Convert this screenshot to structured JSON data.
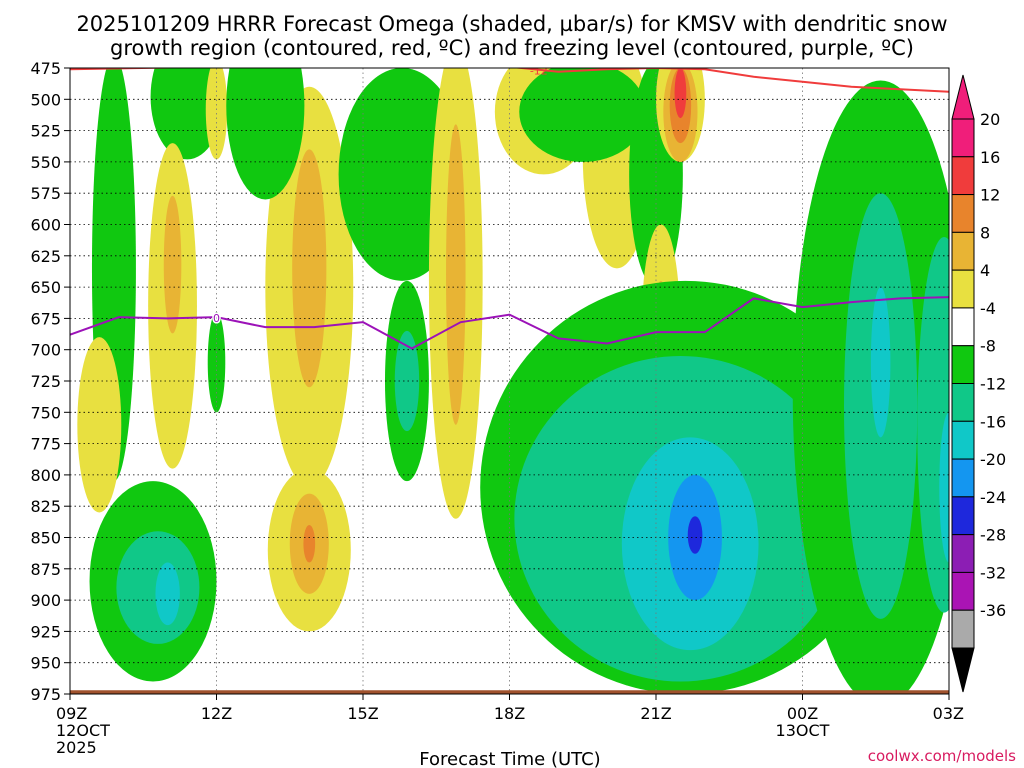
{
  "chart_data": {
    "type": "heatmap",
    "title_line1": "2025101209 HRRR Forecast Omega (shaded, µbar/s) for KMSV with dendritic snow",
    "title_line2": "growth region (contoured, red, ºC) and freezing level (contoured, purple, ºC)",
    "xlabel": "Forecast Time (UTC)",
    "credit": "coolwx.com/models",
    "x_hours": [
      0,
      3,
      6,
      9,
      12,
      15,
      18
    ],
    "x_ticks": [
      "09Z",
      "12Z",
      "15Z",
      "18Z",
      "21Z",
      "00Z",
      "03Z"
    ],
    "x_sub_ticks": [
      {
        "hour": 0,
        "line2": "12OCT",
        "line3": "2025"
      },
      {
        "hour": 15,
        "line2": "13OCT",
        "line3": ""
      }
    ],
    "xlim": [
      0,
      18
    ],
    "y_ticks": [
      475,
      500,
      525,
      550,
      575,
      600,
      625,
      650,
      675,
      700,
      725,
      750,
      775,
      800,
      825,
      850,
      875,
      900,
      925,
      950,
      975
    ],
    "ylim": [
      475,
      975
    ],
    "colorbar": {
      "labels": [
        "20",
        "16",
        "12",
        "8",
        "4",
        "-4",
        "-8",
        "-12",
        "-16",
        "-20",
        "-24",
        "-28",
        "-32",
        "-36"
      ],
      "colors": [
        "#f01e7a",
        "#f03c3c",
        "#e8842c",
        "#e8b434",
        "#e8e040",
        "#ffffff",
        "#10c810",
        "#10c888",
        "#10c8c8",
        "#1496f0",
        "#1e28dc",
        "#8c1eb4",
        "#aa14b4",
        "#aaaaaa"
      ],
      "top_arrow_color": "#f01e7a",
      "bottom_arrow_color": "#000000"
    },
    "freezing_level": {
      "color": "#9c12b8",
      "label": "0",
      "hours": [
        0,
        1,
        2,
        3,
        4,
        5,
        6,
        7,
        8,
        9,
        10,
        11,
        12,
        13,
        14,
        15,
        16,
        17,
        18
      ],
      "pressure": [
        688,
        674,
        675,
        674,
        682,
        682,
        678,
        699,
        678,
        672,
        691,
        695,
        686,
        686,
        659,
        666,
        662,
        659,
        658
      ]
    },
    "dgz_top": {
      "color": "#f03c3c",
      "label": "-12",
      "hours": [
        0,
        3,
        6,
        9,
        10,
        11,
        12,
        13,
        14,
        15,
        16,
        17,
        18
      ],
      "pressure": [
        476,
        474,
        474,
        474,
        478,
        476,
        475,
        476,
        482,
        486,
        490,
        492,
        494
      ]
    },
    "ground": {
      "color": "#a0522d",
      "pressure": 972
    },
    "omega_regions": [
      {
        "band": "-8",
        "hour": 0.9,
        "p": 635,
        "dh": 0.45,
        "dp": 170
      },
      {
        "band": "-8",
        "hour": 2.4,
        "p": 498,
        "dh": 0.75,
        "dp": 50
      },
      {
        "band": "4",
        "hour": 3.0,
        "p": 508,
        "dh": 0.22,
        "dp": 40
      },
      {
        "band": "4",
        "hour": 0.6,
        "p": 760,
        "dh": 0.45,
        "dp": 70
      },
      {
        "band": "4",
        "hour": 2.1,
        "p": 665,
        "dh": 0.5,
        "dp": 130
      },
      {
        "band": "8",
        "hour": 2.1,
        "p": 632,
        "dh": 0.18,
        "dp": 55
      },
      {
        "band": "-8",
        "hour": 3.0,
        "p": 710,
        "dh": 0.18,
        "dp": 40
      },
      {
        "band": "4",
        "hour": 4.9,
        "p": 650,
        "dh": 0.9,
        "dp": 160
      },
      {
        "band": "8",
        "hour": 4.9,
        "p": 635,
        "dh": 0.35,
        "dp": 95
      },
      {
        "band": "-8",
        "hour": 4.0,
        "p": 505,
        "dh": 0.8,
        "dp": 75
      },
      {
        "band": "-8",
        "hour": 1.7,
        "p": 885,
        "dh": 1.3,
        "dp": 80
      },
      {
        "band": "-12",
        "hour": 1.8,
        "p": 890,
        "dh": 0.85,
        "dp": 45
      },
      {
        "band": "-16",
        "hour": 2.0,
        "p": 895,
        "dh": 0.25,
        "dp": 25
      },
      {
        "band": "4",
        "hour": 4.9,
        "p": 860,
        "dh": 0.85,
        "dp": 65
      },
      {
        "band": "8",
        "hour": 4.9,
        "p": 855,
        "dh": 0.4,
        "dp": 40
      },
      {
        "band": "12",
        "hour": 4.9,
        "p": 855,
        "dh": 0.12,
        "dp": 15
      },
      {
        "band": "-8",
        "hour": 6.8,
        "p": 560,
        "dh": 1.3,
        "dp": 85
      },
      {
        "band": "-8",
        "hour": 6.9,
        "p": 725,
        "dh": 0.45,
        "dp": 80
      },
      {
        "band": "-12",
        "hour": 6.9,
        "p": 725,
        "dh": 0.25,
        "dp": 40
      },
      {
        "band": "4",
        "hour": 7.9,
        "p": 645,
        "dh": 0.55,
        "dp": 190
      },
      {
        "band": "8",
        "hour": 7.9,
        "p": 640,
        "dh": 0.2,
        "dp": 120
      },
      {
        "band": "4",
        "hour": 9.7,
        "p": 510,
        "dh": 1.0,
        "dp": 50
      },
      {
        "band": "4",
        "hour": 11.2,
        "p": 545,
        "dh": 0.7,
        "dp": 90
      },
      {
        "band": "-8",
        "hour": 10.5,
        "p": 510,
        "dh": 1.3,
        "dp": 40
      },
      {
        "band": "-8",
        "hour": 12.0,
        "p": 560,
        "dh": 0.55,
        "dp": 90
      },
      {
        "band": "4",
        "hour": 12.1,
        "p": 685,
        "dh": 0.4,
        "dp": 85
      },
      {
        "band": "8",
        "hour": 12.1,
        "p": 690,
        "dh": 0.15,
        "dp": 45
      },
      {
        "band": "-8",
        "hour": 12.6,
        "p": 810,
        "dh": 4.2,
        "dp": 165
      },
      {
        "band": "-12",
        "hour": 12.5,
        "p": 835,
        "dh": 3.4,
        "dp": 130
      },
      {
        "band": "-16",
        "hour": 12.7,
        "p": 855,
        "dh": 1.4,
        "dp": 85
      },
      {
        "band": "-20",
        "hour": 12.8,
        "p": 850,
        "dh": 0.55,
        "dp": 50
      },
      {
        "band": "-24",
        "hour": 12.8,
        "p": 848,
        "dh": 0.15,
        "dp": 15
      },
      {
        "band": "4",
        "hour": 12.5,
        "p": 500,
        "dh": 0.5,
        "dp": 50
      },
      {
        "band": "8",
        "hour": 12.5,
        "p": 510,
        "dh": 0.35,
        "dp": 40
      },
      {
        "band": "12",
        "hour": 12.5,
        "p": 505,
        "dh": 0.22,
        "dp": 30
      },
      {
        "band": "16",
        "hour": 12.5,
        "p": 495,
        "dh": 0.12,
        "dp": 20
      },
      {
        "band": "-8",
        "hour": 16.6,
        "p": 735,
        "dh": 1.8,
        "dp": 250
      },
      {
        "band": "-12",
        "hour": 16.6,
        "p": 745,
        "dh": 0.75,
        "dp": 170
      },
      {
        "band": "-16",
        "hour": 16.6,
        "p": 710,
        "dh": 0.2,
        "dp": 60
      },
      {
        "band": "-12",
        "hour": 17.9,
        "p": 760,
        "dh": 0.55,
        "dp": 150
      },
      {
        "band": "-16",
        "hour": 18.0,
        "p": 810,
        "dh": 0.2,
        "dp": 60
      }
    ]
  }
}
